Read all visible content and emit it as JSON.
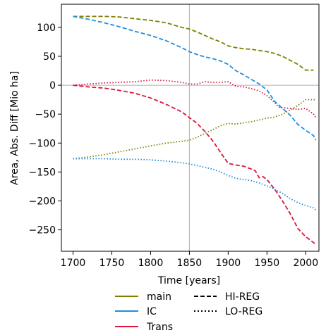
{
  "chart_data": {
    "type": "line",
    "title": "",
    "xlabel": "Time [years]",
    "ylabel": "Area, Abs. Diff [Mio ha]",
    "xlim": [
      1685,
      2017
    ],
    "ylim": [
      -287,
      140
    ],
    "xticks": [
      1700,
      1750,
      1800,
      1850,
      1900,
      1950,
      2000
    ],
    "xtick_labels": [
      "1700",
      "1750",
      "1800",
      "1850",
      "1900",
      "1950",
      "2000"
    ],
    "yticks": [
      100,
      50,
      0,
      -50,
      -100,
      -150,
      -200,
      -250
    ],
    "ytick_labels": [
      "100",
      "50",
      "0",
      "−50",
      "−100",
      "−150",
      "−200",
      "−250"
    ],
    "reference_lines": {
      "horizontal_y": 0,
      "vertical_x": 1850
    },
    "legend": {
      "placement": "below",
      "colors": [
        {
          "label": "main",
          "color": "#808000"
        },
        {
          "label": "IC",
          "color": "#1f8fe0"
        },
        {
          "label": "Trans",
          "color": "#dc143c"
        }
      ],
      "styles": [
        {
          "label": "HI-REG",
          "dash": "dashed"
        },
        {
          "label": "LO-REG",
          "dash": "dotted"
        }
      ]
    },
    "series": [
      {
        "name": "main",
        "style": "HI-REG",
        "color": "#808000",
        "dash": "dashed",
        "x": [
          1700,
          1720,
          1740,
          1760,
          1780,
          1800,
          1820,
          1840,
          1850,
          1860,
          1870,
          1880,
          1890,
          1900,
          1910,
          1920,
          1930,
          1940,
          1950,
          1960,
          1970,
          1980,
          1990,
          2000,
          2010
        ],
        "y": [
          119,
          119,
          119,
          118,
          115,
          112,
          108,
          100,
          97,
          92,
          86,
          80,
          75,
          68,
          65,
          63,
          62,
          60,
          58,
          55,
          50,
          43,
          36,
          26,
          26
        ]
      },
      {
        "name": "IC",
        "style": "HI-REG",
        "color": "#1f8fe0",
        "dash": "dashed",
        "x": [
          1700,
          1720,
          1740,
          1760,
          1780,
          1800,
          1820,
          1840,
          1850,
          1860,
          1870,
          1880,
          1890,
          1900,
          1910,
          1920,
          1930,
          1940,
          1950,
          1960,
          1970,
          1980,
          1990,
          2000,
          2010,
          2013
        ],
        "y": [
          119,
          114,
          108,
          101,
          93,
          86,
          77,
          65,
          58,
          53,
          49,
          46,
          42,
          36,
          25,
          18,
          10,
          2,
          -8,
          -28,
          -40,
          -52,
          -68,
          -78,
          -87,
          -95
        ]
      },
      {
        "name": "Trans",
        "style": "HI-REG",
        "color": "#dc143c",
        "dash": "dashed",
        "x": [
          1700,
          1720,
          1740,
          1760,
          1780,
          1800,
          1820,
          1840,
          1850,
          1860,
          1870,
          1880,
          1890,
          1900,
          1910,
          1920,
          1930,
          1935,
          1940,
          1945,
          1950,
          1960,
          1970,
          1980,
          1990,
          2000,
          2010,
          2013
        ],
        "y": [
          0,
          -3,
          -5,
          -9,
          -14,
          -22,
          -33,
          -46,
          -56,
          -66,
          -80,
          -96,
          -116,
          -135,
          -138,
          -140,
          -145,
          -148,
          -160,
          -158,
          -163,
          -180,
          -200,
          -222,
          -248,
          -262,
          -272,
          -275
        ]
      },
      {
        "name": "main",
        "style": "LO-REG",
        "color": "#808000",
        "dash": "dotted",
        "x": [
          1700,
          1720,
          1740,
          1760,
          1780,
          1800,
          1820,
          1840,
          1850,
          1860,
          1870,
          1880,
          1890,
          1900,
          1910,
          1920,
          1930,
          1940,
          1950,
          1960,
          1970,
          1980,
          1990,
          2000,
          2010,
          2013
        ],
        "y": [
          -127,
          -124,
          -120,
          -115,
          -110,
          -105,
          -100,
          -97,
          -95,
          -90,
          -83,
          -77,
          -70,
          -66,
          -67,
          -65,
          -63,
          -60,
          -57,
          -55,
          -50,
          -43,
          -35,
          -25,
          -25,
          -25
        ]
      },
      {
        "name": "IC",
        "style": "LO-REG",
        "color": "#1f8fe0",
        "dash": "dotted",
        "x": [
          1700,
          1720,
          1740,
          1760,
          1780,
          1800,
          1820,
          1840,
          1850,
          1860,
          1870,
          1880,
          1890,
          1900,
          1910,
          1920,
          1930,
          1940,
          1950,
          1960,
          1970,
          1980,
          1990,
          2000,
          2010,
          2013
        ],
        "y": [
          -127,
          -127,
          -127,
          -128,
          -128,
          -129,
          -131,
          -134,
          -136,
          -139,
          -142,
          -145,
          -150,
          -156,
          -161,
          -163,
          -165,
          -169,
          -174,
          -180,
          -187,
          -196,
          -203,
          -208,
          -212,
          -216
        ]
      },
      {
        "name": "Trans",
        "style": "LO-REG",
        "color": "#dc143c",
        "dash": "dotted",
        "x": [
          1700,
          1720,
          1740,
          1760,
          1780,
          1800,
          1820,
          1840,
          1850,
          1860,
          1870,
          1880,
          1890,
          1900,
          1910,
          1920,
          1930,
          1940,
          1950,
          1960,
          1965,
          1970,
          1980,
          1990,
          2000,
          2010,
          2013
        ],
        "y": [
          0,
          2,
          4,
          5,
          6,
          9,
          8,
          5,
          2,
          2,
          6,
          5,
          5,
          6,
          -2,
          -3,
          -6,
          -10,
          -18,
          -30,
          -38,
          -39,
          -40,
          -42,
          -40,
          -50,
          -56
        ]
      }
    ]
  }
}
